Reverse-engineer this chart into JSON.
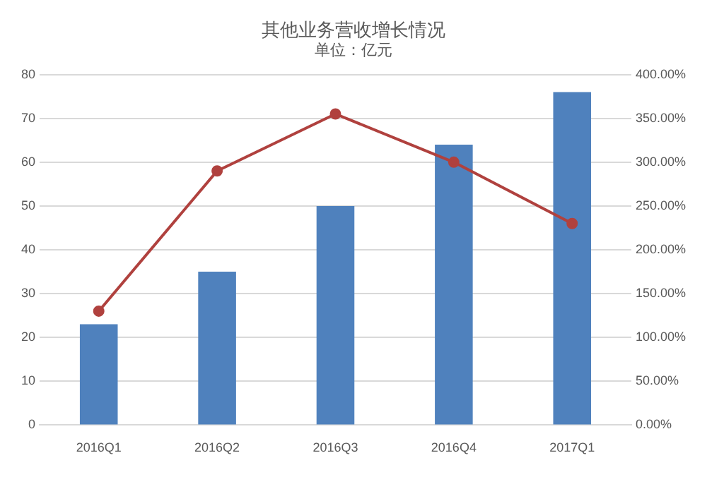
{
  "chart_data": {
    "type": "bar",
    "title": "其他业务营收增长情况",
    "subtitle": "单位：亿元",
    "categories": [
      "2016Q1",
      "2016Q2",
      "2016Q3",
      "2016Q4",
      "2017Q1"
    ],
    "series": [
      {
        "color": "#4f81bd",
        "values": [
          23,
          35,
          50,
          64,
          76
        ]
      },
      {
        "type": "line",
        "axis": "y2",
        "color": "#b0413e",
        "marker": "circle",
        "values": [
          130,
          290,
          355,
          300,
          230
        ]
      }
    ],
    "ylim": [
      0,
      80
    ],
    "yticks": [
      0,
      10,
      20,
      30,
      40,
      50,
      60,
      70,
      80
    ],
    "y2lim": [
      0,
      400
    ],
    "y2ticks": [
      {
        "value": 0,
        "label": "0.00%"
      },
      {
        "value": 50,
        "label": "50.00%"
      },
      {
        "value": 100,
        "label": "100.00%"
      },
      {
        "value": 150,
        "label": "150.00%"
      },
      {
        "value": 200,
        "label": "200.00%"
      },
      {
        "value": 250,
        "label": "250.00%"
      },
      {
        "value": 300,
        "label": "300.00%"
      },
      {
        "value": 350,
        "label": "350.00%"
      },
      {
        "value": 400,
        "label": "400.00%"
      }
    ],
    "grid": "y",
    "legend": false
  }
}
